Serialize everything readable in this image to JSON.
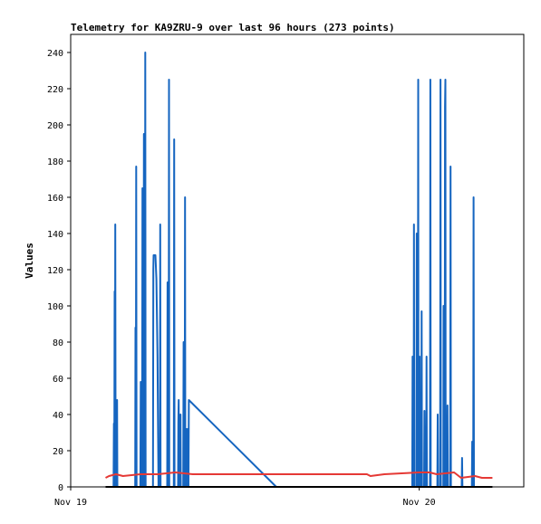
{
  "chart_data": {
    "type": "line",
    "title": "Telemetry for KA9ZRU-9 over last 96 hours (273 points)",
    "xlabel": "",
    "ylabel": "Values",
    "ylim": [
      0,
      250
    ],
    "yticks": [
      0,
      20,
      40,
      60,
      80,
      100,
      120,
      140,
      160,
      180,
      200,
      220,
      240
    ],
    "xlim": [
      0,
      1.3
    ],
    "xticks": [
      {
        "label": "Nov 19",
        "x": 0.0
      },
      {
        "label": "Nov 20",
        "x": 1.0
      }
    ],
    "grid": false,
    "series": [
      {
        "color": "#1565c0",
        "points": [
          [
            0.1,
            0
          ],
          [
            0.123,
            0
          ],
          [
            0.124,
            35
          ],
          [
            0.125,
            0
          ],
          [
            0.126,
            108
          ],
          [
            0.127,
            0
          ],
          [
            0.128,
            145
          ],
          [
            0.129,
            0
          ],
          [
            0.132,
            0
          ],
          [
            0.133,
            48
          ],
          [
            0.134,
            0
          ],
          [
            0.185,
            0
          ],
          [
            0.186,
            88
          ],
          [
            0.187,
            0
          ],
          [
            0.188,
            177
          ],
          [
            0.189,
            0
          ],
          [
            0.2,
            0
          ],
          [
            0.201,
            58
          ],
          [
            0.202,
            0
          ],
          [
            0.205,
            0
          ],
          [
            0.206,
            165
          ],
          [
            0.207,
            0
          ],
          [
            0.209,
            0
          ],
          [
            0.21,
            195
          ],
          [
            0.211,
            0
          ],
          [
            0.213,
            0
          ],
          [
            0.214,
            240
          ],
          [
            0.215,
            0
          ],
          [
            0.236,
            0
          ],
          [
            0.237,
            120
          ],
          [
            0.238,
            128
          ],
          [
            0.243,
            128
          ],
          [
            0.246,
            115
          ],
          [
            0.249,
            72
          ],
          [
            0.252,
            0
          ],
          [
            0.256,
            0
          ],
          [
            0.257,
            145
          ],
          [
            0.258,
            0
          ],
          [
            0.277,
            0
          ],
          [
            0.278,
            113
          ],
          [
            0.279,
            0
          ],
          [
            0.281,
            0
          ],
          [
            0.282,
            225
          ],
          [
            0.283,
            0
          ],
          [
            0.296,
            0
          ],
          [
            0.297,
            192
          ],
          [
            0.298,
            0
          ],
          [
            0.308,
            0
          ],
          [
            0.309,
            35
          ],
          [
            0.31,
            48
          ],
          [
            0.311,
            0
          ],
          [
            0.314,
            0
          ],
          [
            0.315,
            40
          ],
          [
            0.316,
            0
          ],
          [
            0.323,
            0
          ],
          [
            0.324,
            80
          ],
          [
            0.325,
            0
          ],
          [
            0.327,
            0
          ],
          [
            0.328,
            160
          ],
          [
            0.329,
            0
          ],
          [
            0.331,
            0
          ],
          [
            0.332,
            32
          ],
          [
            0.333,
            0
          ],
          [
            0.335,
            0
          ],
          [
            0.336,
            32
          ],
          [
            0.337,
            0
          ],
          [
            0.338,
            0
          ],
          [
            0.339,
            48
          ],
          [
            0.59,
            0
          ],
          [
            0.98,
            0
          ],
          [
            0.981,
            72
          ],
          [
            0.982,
            0
          ],
          [
            0.984,
            0
          ],
          [
            0.985,
            145
          ],
          [
            0.986,
            0
          ],
          [
            0.992,
            0
          ],
          [
            0.993,
            140
          ],
          [
            0.994,
            0
          ],
          [
            0.996,
            0
          ],
          [
            0.997,
            225
          ],
          [
            0.998,
            0
          ],
          [
            1.0,
            0
          ],
          [
            1.001,
            72
          ],
          [
            1.002,
            0
          ],
          [
            1.006,
            0
          ],
          [
            1.007,
            97
          ],
          [
            1.008,
            0
          ],
          [
            1.014,
            0
          ],
          [
            1.015,
            42
          ],
          [
            1.016,
            0
          ],
          [
            1.02,
            0
          ],
          [
            1.021,
            72
          ],
          [
            1.022,
            0
          ],
          [
            1.031,
            0
          ],
          [
            1.032,
            225
          ],
          [
            1.033,
            0
          ],
          [
            1.052,
            0
          ],
          [
            1.053,
            40
          ],
          [
            1.054,
            0
          ],
          [
            1.06,
            0
          ],
          [
            1.061,
            225
          ],
          [
            1.062,
            0
          ],
          [
            1.069,
            0
          ],
          [
            1.07,
            100
          ],
          [
            1.071,
            0
          ],
          [
            1.073,
            0
          ],
          [
            1.074,
            210
          ],
          [
            1.075,
            225
          ],
          [
            1.076,
            0
          ],
          [
            1.08,
            0
          ],
          [
            1.081,
            45
          ],
          [
            1.082,
            0
          ],
          [
            1.089,
            0
          ],
          [
            1.09,
            177
          ],
          [
            1.091,
            0
          ],
          [
            1.122,
            0
          ],
          [
            1.123,
            16
          ],
          [
            1.124,
            0
          ],
          [
            1.151,
            0
          ],
          [
            1.152,
            25
          ],
          [
            1.153,
            0
          ],
          [
            1.155,
            0
          ],
          [
            1.156,
            160
          ],
          [
            1.157,
            0
          ],
          [
            1.16,
            0
          ]
        ]
      },
      {
        "color": "#e53935",
        "points": [
          [
            0.1,
            5
          ],
          [
            0.11,
            6
          ],
          [
            0.13,
            7
          ],
          [
            0.15,
            6
          ],
          [
            0.2,
            7
          ],
          [
            0.25,
            7
          ],
          [
            0.3,
            8
          ],
          [
            0.35,
            7
          ],
          [
            0.4,
            7
          ],
          [
            0.55,
            7
          ],
          [
            0.7,
            7
          ],
          [
            0.85,
            7
          ],
          [
            0.86,
            6
          ],
          [
            0.9,
            7
          ],
          [
            1.0,
            8
          ],
          [
            1.03,
            8
          ],
          [
            1.05,
            7
          ],
          [
            1.1,
            8
          ],
          [
            1.12,
            5
          ],
          [
            1.16,
            6
          ],
          [
            1.18,
            5
          ],
          [
            1.21,
            5
          ]
        ]
      },
      {
        "color": "#000000",
        "points": [
          [
            0.1,
            0
          ],
          [
            1.21,
            0
          ]
        ]
      }
    ]
  }
}
